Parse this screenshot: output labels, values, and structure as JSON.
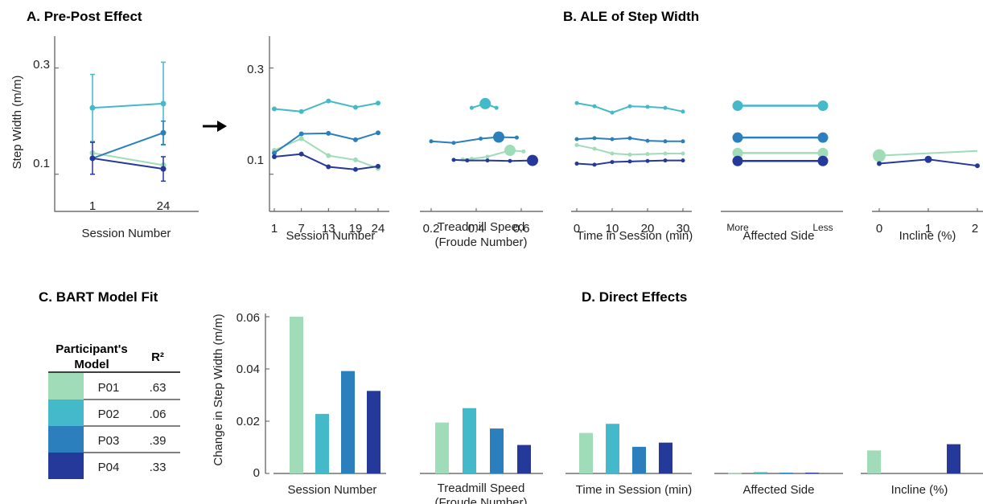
{
  "colors": {
    "P01": "#9fdcb7",
    "P02": "#43b9c9",
    "P03": "#2b7fbc",
    "P04": "#25399a"
  },
  "titles": {
    "a": "A. Pre-Post Effect",
    "b": "B. ALE of Step Width",
    "c": "C. BART Model Fit",
    "d": "D. Direct Effects"
  },
  "chart_data": [
    {
      "id": "A",
      "type": "line",
      "title": "A. Pre-Post Effect",
      "xlabel": "Session Number",
      "ylabel": "Step Width (m/m)",
      "categories": [
        "1",
        "24"
      ],
      "yticks": [
        "0.1",
        "0.3"
      ],
      "ylim": [
        0.03,
        0.36
      ],
      "series": [
        {
          "name": "P01",
          "values": [
            0.14,
            0.117
          ],
          "err": [
            0,
            0
          ]
        },
        {
          "name": "P02",
          "values": [
            0.225,
            0.233
          ],
          "err": [
            0.063,
            0.078
          ]
        },
        {
          "name": "P03",
          "values": [
            0.13,
            0.178
          ],
          "err": [
            0,
            0.022
          ]
        },
        {
          "name": "P04",
          "values": [
            0.13,
            0.11
          ],
          "err": [
            0.03,
            0.023
          ]
        }
      ]
    },
    {
      "id": "B-session",
      "type": "line",
      "title": "B. ALE of Step Width",
      "xlabel": "Session Number",
      "yticks": [
        "0.1",
        "0.3"
      ],
      "ylim": [
        0.03,
        0.36
      ],
      "xlim": [
        0.5,
        24.5
      ],
      "xticks": [
        "1",
        "7",
        "13",
        "19",
        "24"
      ],
      "series": [
        {
          "name": "P01",
          "x": [
            1,
            7,
            13,
            19,
            24
          ],
          "values": [
            0.145,
            0.167,
            0.135,
            0.127,
            0.111
          ]
        },
        {
          "name": "P02",
          "x": [
            1,
            7,
            13,
            19,
            24
          ],
          "values": [
            0.223,
            0.218,
            0.238,
            0.226,
            0.234
          ]
        },
        {
          "name": "P03",
          "x": [
            1,
            7,
            13,
            19,
            24
          ],
          "values": [
            0.14,
            0.176,
            0.177,
            0.165,
            0.178
          ]
        },
        {
          "name": "P04",
          "x": [
            1,
            7,
            13,
            19,
            24
          ],
          "values": [
            0.133,
            0.138,
            0.114,
            0.109,
            0.115
          ]
        }
      ]
    },
    {
      "id": "B-speed",
      "type": "scatter",
      "xlabel": "Treadmill Speed",
      "xlabel2": "(Froude Number)",
      "xlim": [
        0.2,
        0.68
      ],
      "xticks": [
        "0.2",
        "0.4",
        "0.6"
      ],
      "xtick_values": [
        0.2,
        0.4,
        0.6
      ],
      "series": [
        {
          "name": "P01",
          "x": [
            0.34,
            0.38,
            0.45,
            0.55,
            0.61
          ],
          "values": [
            0.128,
            0.129,
            0.133,
            0.145,
            0.143
          ]
        },
        {
          "name": "P02",
          "x": [
            0.38,
            0.44,
            0.49
          ],
          "values": [
            0.225,
            0.233,
            0.225
          ]
        },
        {
          "name": "P03",
          "x": [
            0.2,
            0.3,
            0.42,
            0.5,
            0.58
          ],
          "values": [
            0.162,
            0.159,
            0.167,
            0.17,
            0.169
          ]
        },
        {
          "name": "P04",
          "x": [
            0.3,
            0.36,
            0.45,
            0.55,
            0.65
          ],
          "values": [
            0.127,
            0.126,
            0.126,
            0.125,
            0.126
          ]
        }
      ]
    },
    {
      "id": "B-time",
      "type": "line",
      "xlabel": "Time in Session (min)",
      "xlim": [
        0,
        30
      ],
      "xticks": [
        "0",
        "10",
        "20",
        "30"
      ],
      "xtick_values": [
        0,
        10,
        20,
        30
      ],
      "series": [
        {
          "name": "P01",
          "x": [
            0,
            5,
            10,
            15,
            20,
            25,
            30
          ],
          "values": [
            0.155,
            0.148,
            0.139,
            0.137,
            0.138,
            0.139,
            0.139
          ]
        },
        {
          "name": "P02",
          "x": [
            0,
            5,
            10,
            15,
            20,
            25,
            30
          ],
          "values": [
            0.234,
            0.228,
            0.216,
            0.228,
            0.227,
            0.225,
            0.218
          ]
        },
        {
          "name": "P03",
          "x": [
            0,
            5,
            10,
            15,
            20,
            25,
            30
          ],
          "values": [
            0.166,
            0.168,
            0.166,
            0.168,
            0.163,
            0.162,
            0.162
          ]
        },
        {
          "name": "P04",
          "x": [
            0,
            5,
            10,
            15,
            20,
            25,
            30
          ],
          "values": [
            0.12,
            0.118,
            0.123,
            0.124,
            0.125,
            0.126,
            0.126
          ]
        }
      ]
    },
    {
      "id": "B-side",
      "type": "line",
      "xlabel": "Affected Side",
      "categories": [
        "More",
        "Less"
      ],
      "series": [
        {
          "name": "P01",
          "values": [
            0.14,
            0.14
          ]
        },
        {
          "name": "P02",
          "values": [
            0.229,
            0.229
          ]
        },
        {
          "name": "P03",
          "values": [
            0.169,
            0.169
          ]
        },
        {
          "name": "P04",
          "values": [
            0.125,
            0.125
          ]
        }
      ]
    },
    {
      "id": "B-incline",
      "type": "line",
      "xlabel": "Incline (%)",
      "xlim": [
        0,
        2
      ],
      "xticks": [
        "0",
        "1",
        "2"
      ],
      "xtick_values": [
        0,
        1,
        2
      ],
      "series": [
        {
          "name": "P01",
          "x": [
            0,
            2
          ],
          "values": [
            0.135,
            0.144
          ]
        },
        {
          "name": "P04",
          "x": [
            0,
            1,
            2
          ],
          "values": [
            0.12,
            0.128,
            0.116
          ]
        }
      ]
    },
    {
      "id": "D",
      "type": "bar",
      "title": "D. Direct Effects",
      "ylabel": "Change in Step Width (m/m)",
      "ylim": [
        0,
        0.06
      ],
      "yticks": [
        "0",
        "0.02",
        "0.04",
        "0.06"
      ],
      "groups": [
        "Session Number",
        "Treadmill Speed",
        "Time in Session (min)",
        "Affected Side",
        "Incline (%)"
      ],
      "group_sublabels": [
        "",
        "(Froude Number)",
        "",
        "",
        ""
      ],
      "series": [
        {
          "name": "P01",
          "values": [
            0.06,
            0.0195,
            0.0155,
            0.0002,
            0.0088
          ]
        },
        {
          "name": "P02",
          "values": [
            0.0228,
            0.025,
            0.019,
            0.0005,
            0
          ]
        },
        {
          "name": "P03",
          "values": [
            0.0392,
            0.0172,
            0.0102,
            0.0003,
            0
          ]
        },
        {
          "name": "P04",
          "values": [
            0.0316,
            0.0109,
            0.0118,
            0.0003,
            0.0112
          ]
        }
      ]
    }
  ],
  "table": {
    "header_model_1": "Participant's",
    "header_model_2": "Model",
    "header_r2": "R²",
    "rows": [
      {
        "name": "P01",
        "r2": ".63"
      },
      {
        "name": "P02",
        "r2": ".06"
      },
      {
        "name": "P03",
        "r2": ".39"
      },
      {
        "name": "P04",
        "r2": ".33"
      }
    ]
  }
}
